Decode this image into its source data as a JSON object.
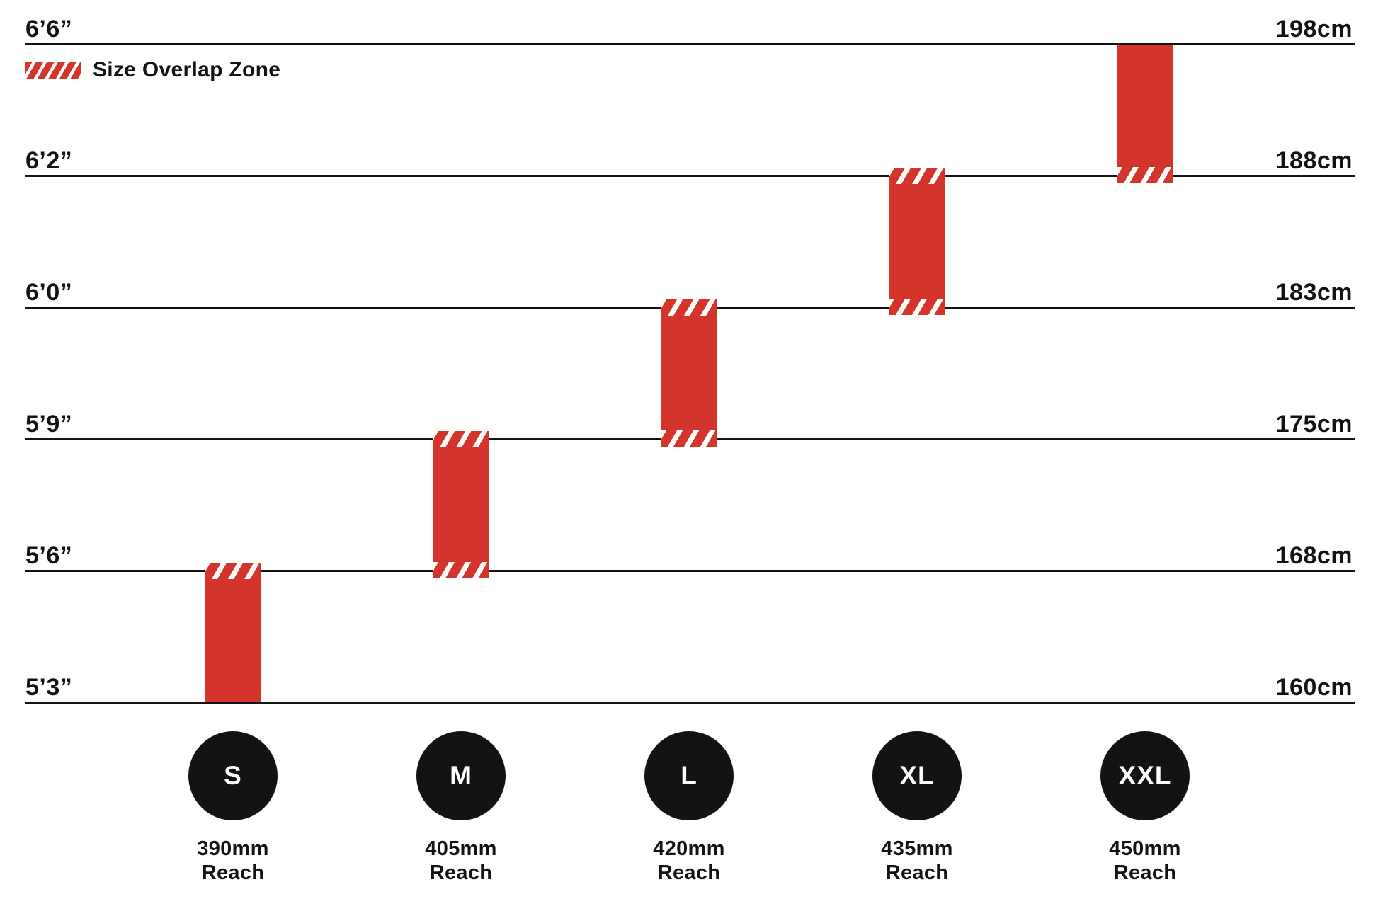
{
  "legend": {
    "label": "Size Overlap Zone"
  },
  "colors": {
    "bar_red": "#D3342B",
    "line_black": "#131313",
    "badge_text": "#FFFFFF",
    "background": "#FFFFFF"
  },
  "chart_data": {
    "type": "bar",
    "subtype": "floating-range-columns",
    "title": "",
    "legend_label": "Size Overlap Zone",
    "legend_position": "top-left",
    "grid": true,
    "left_axis_unit": "feet-inches",
    "right_axis_unit": "centimeters",
    "gridlines": [
      {
        "imperial": "6’6”",
        "metric": "198cm",
        "cm": 198
      },
      {
        "imperial": "6’2”",
        "metric": "188cm",
        "cm": 188
      },
      {
        "imperial": "6’0”",
        "metric": "183cm",
        "cm": 183
      },
      {
        "imperial": "5’9”",
        "metric": "175cm",
        "cm": 175
      },
      {
        "imperial": "5’6”",
        "metric": "168cm",
        "cm": 168
      },
      {
        "imperial": "5’3”",
        "metric": "160cm",
        "cm": 160
      }
    ],
    "series": [
      {
        "size": "S",
        "reach": "390mm",
        "reach_label": "Reach",
        "reach_mm": 390,
        "range_cm": [
          160,
          168
        ],
        "range_imperial": [
          "5’3”",
          "5’6”"
        ],
        "overlap_top": true,
        "overlap_bottom": false
      },
      {
        "size": "M",
        "reach": "405mm",
        "reach_label": "Reach",
        "reach_mm": 405,
        "range_cm": [
          168,
          175
        ],
        "range_imperial": [
          "5’6”",
          "5’9”"
        ],
        "overlap_top": true,
        "overlap_bottom": true
      },
      {
        "size": "L",
        "reach": "420mm",
        "reach_label": "Reach",
        "reach_mm": 420,
        "range_cm": [
          175,
          183
        ],
        "range_imperial": [
          "5’9”",
          "6’0”"
        ],
        "overlap_top": true,
        "overlap_bottom": true
      },
      {
        "size": "XL",
        "reach": "435mm",
        "reach_label": "Reach",
        "reach_mm": 435,
        "range_cm": [
          183,
          188
        ],
        "range_imperial": [
          "6’0”",
          "6’2”"
        ],
        "overlap_top": true,
        "overlap_bottom": true
      },
      {
        "size": "XXL",
        "reach": "450mm",
        "reach_label": "Reach",
        "reach_mm": 450,
        "range_cm": [
          188,
          198
        ],
        "range_imperial": [
          "6’2”",
          "6’6”"
        ],
        "overlap_top": false,
        "overlap_bottom": true
      }
    ]
  }
}
